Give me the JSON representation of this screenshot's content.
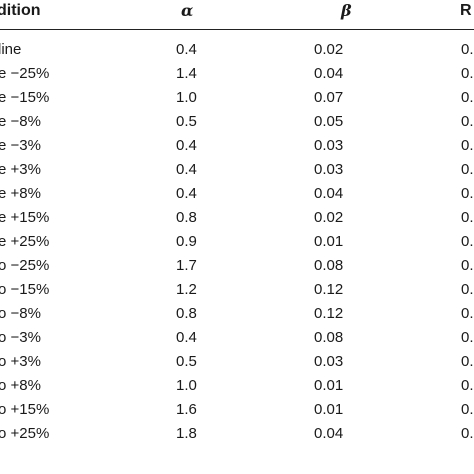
{
  "table": {
    "headers": {
      "condition": "dition",
      "alpha": "α",
      "beta": "β",
      "r": "R"
    },
    "rows": [
      {
        "condition": "line",
        "alpha": "0.4",
        "beta": "0.02",
        "r": "0."
      },
      {
        "condition": "e −25%",
        "alpha": "1.4",
        "beta": "0.04",
        "r": "0."
      },
      {
        "condition": "e −15%",
        "alpha": "1.0",
        "beta": "0.07",
        "r": "0."
      },
      {
        "condition": "e −8%",
        "alpha": "0.5",
        "beta": "0.05",
        "r": "0."
      },
      {
        "condition": "e −3%",
        "alpha": "0.4",
        "beta": "0.03",
        "r": "0."
      },
      {
        "condition": "e +3%",
        "alpha": "0.4",
        "beta": "0.03",
        "r": "0."
      },
      {
        "condition": "e +8%",
        "alpha": "0.4",
        "beta": "0.04",
        "r": "0."
      },
      {
        "condition": "e +15%",
        "alpha": "0.8",
        "beta": "0.02",
        "r": "0."
      },
      {
        "condition": "e +25%",
        "alpha": "0.9",
        "beta": "0.01",
        "r": "0."
      },
      {
        "condition": "o −25%",
        "alpha": "1.7",
        "beta": "0.08",
        "r": "0."
      },
      {
        "condition": "o −15%",
        "alpha": "1.2",
        "beta": "0.12",
        "r": "0."
      },
      {
        "condition": "o −8%",
        "alpha": "0.8",
        "beta": "0.12",
        "r": "0."
      },
      {
        "condition": "o −3%",
        "alpha": "0.4",
        "beta": "0.08",
        "r": "0."
      },
      {
        "condition": "o +3%",
        "alpha": "0.5",
        "beta": "0.03",
        "r": "0."
      },
      {
        "condition": "o +8%",
        "alpha": "1.0",
        "beta": "0.01",
        "r": "0."
      },
      {
        "condition": "o +15%",
        "alpha": "1.6",
        "beta": "0.01",
        "r": "0."
      },
      {
        "condition": "o +25%",
        "alpha": "1.8",
        "beta": "0.04",
        "r": "0."
      }
    ]
  }
}
